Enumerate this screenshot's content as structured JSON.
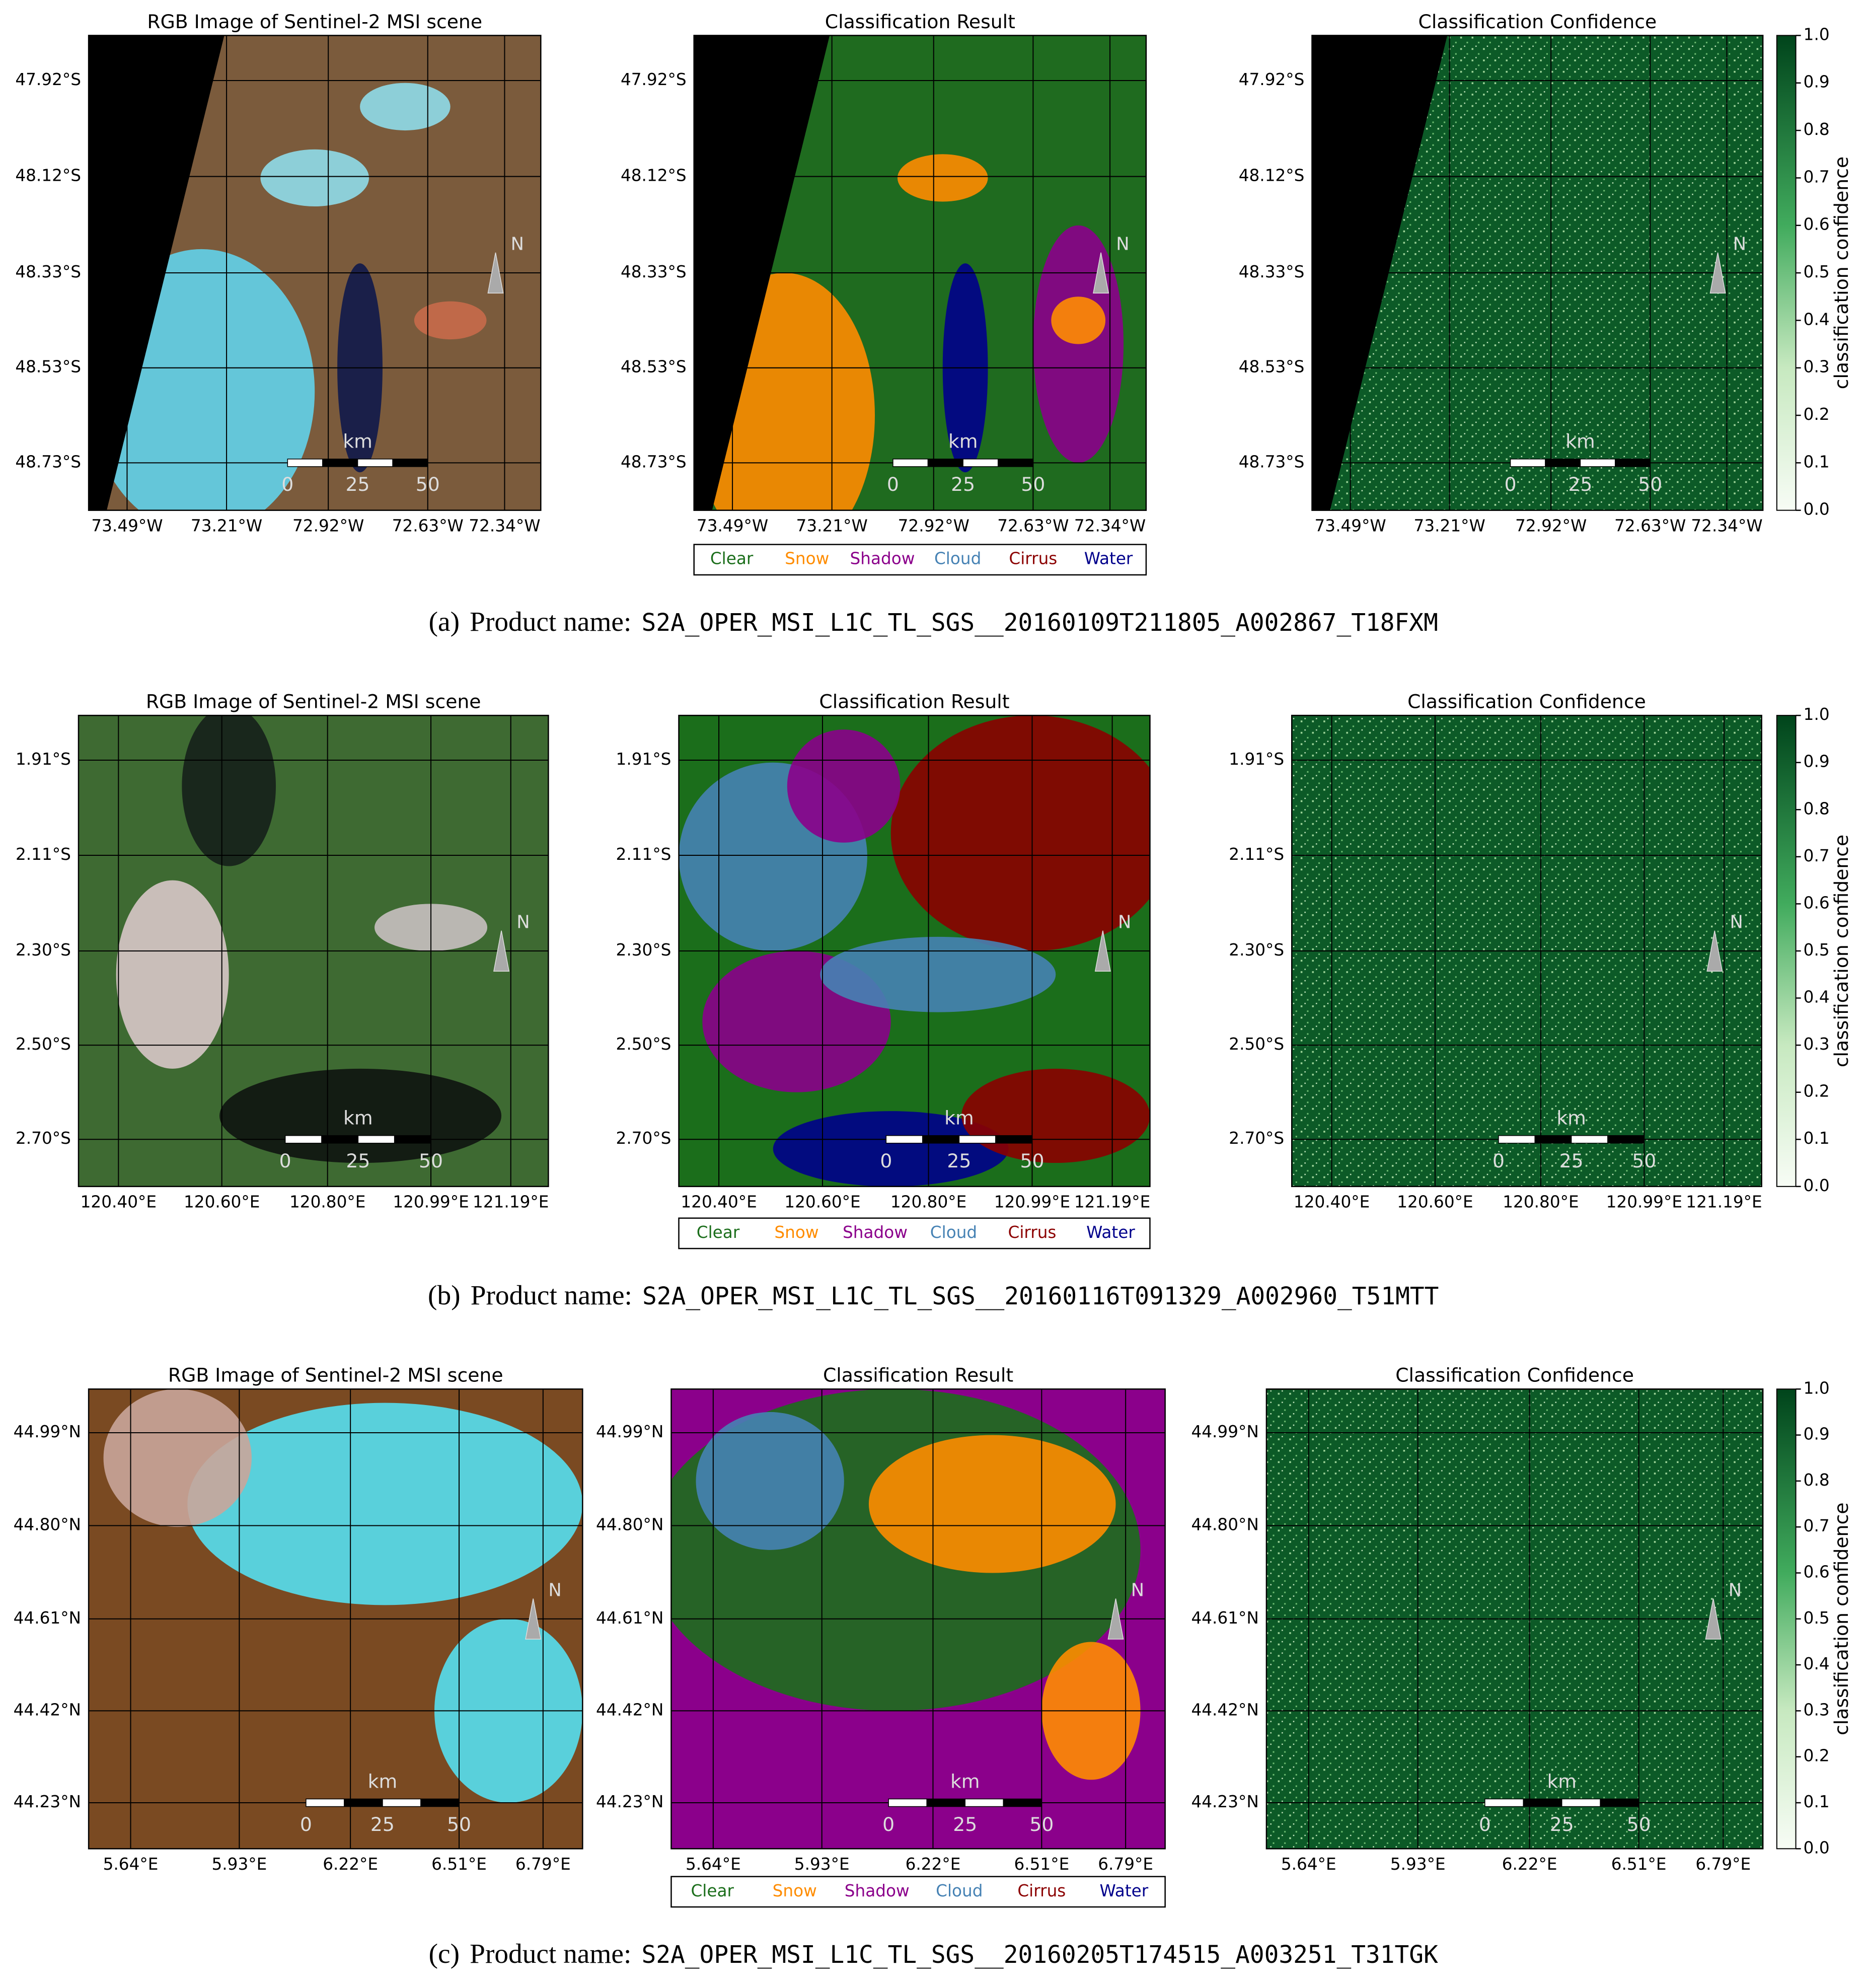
{
  "panels": [
    {
      "rgb_title": "RGB Image of Sentinel-2 MSI scene",
      "class_title": "Classification Result",
      "conf_title": "Classification Confidence",
      "yticks": [
        "47.92°S",
        "48.12°S",
        "48.33°S",
        "48.53°S",
        "48.73°S"
      ],
      "xticks": [
        "73.49°W",
        "73.21°W",
        "72.92°W",
        "72.63°W",
        "72.34°W"
      ],
      "scale_unit": "km",
      "scale_ticks": [
        "0",
        "25",
        "50"
      ],
      "north": "N",
      "legend": [
        "Clear",
        "Snow",
        "Shadow",
        "Cloud",
        "Cirrus",
        "Water"
      ],
      "colorbar_label": "classification confidence",
      "colorbar_ticks": [
        "0.0",
        "0.1",
        "0.2",
        "0.3",
        "0.4",
        "0.5",
        "0.6",
        "0.7",
        "0.8",
        "0.9",
        "1.0"
      ],
      "caption": {
        "label": "(a)",
        "text": "Product name:",
        "product": "S2A_OPER_MSI_L1C_TL_SGS__20160109T211805_A002867_T18FXM"
      }
    },
    {
      "rgb_title": "RGB Image of Sentinel-2 MSI scene",
      "class_title": "Classification Result",
      "conf_title": "Classification Confidence",
      "yticks": [
        "1.91°S",
        "2.11°S",
        "2.30°S",
        "2.50°S",
        "2.70°S"
      ],
      "xticks": [
        "120.40°E",
        "120.60°E",
        "120.80°E",
        "120.99°E",
        "121.19°E"
      ],
      "scale_unit": "km",
      "scale_ticks": [
        "0",
        "25",
        "50"
      ],
      "north": "N",
      "legend": [
        "Clear",
        "Snow",
        "Shadow",
        "Cloud",
        "Cirrus",
        "Water"
      ],
      "colorbar_label": "classification confidence",
      "colorbar_ticks": [
        "0.0",
        "0.1",
        "0.2",
        "0.3",
        "0.4",
        "0.5",
        "0.6",
        "0.7",
        "0.8",
        "0.9",
        "1.0"
      ],
      "caption": {
        "label": "(b)",
        "text": "Product name:",
        "product": "S2A_OPER_MSI_L1C_TL_SGS__20160116T091329_A002960_T51MTT"
      }
    },
    {
      "rgb_title": "RGB Image of Sentinel-2 MSI scene",
      "class_title": "Classification Result",
      "conf_title": "Classification Confidence",
      "yticks": [
        "44.99°N",
        "44.80°N",
        "44.61°N",
        "44.42°N",
        "44.23°N"
      ],
      "xticks": [
        "5.64°E",
        "5.93°E",
        "6.22°E",
        "6.51°E",
        "6.79°E"
      ],
      "scale_unit": "km",
      "scale_ticks": [
        "0",
        "25",
        "50"
      ],
      "north": "N",
      "legend": [
        "Clear",
        "Snow",
        "Shadow",
        "Cloud",
        "Cirrus",
        "Water"
      ],
      "colorbar_label": "classification confidence",
      "colorbar_ticks": [
        "0.0",
        "0.1",
        "0.2",
        "0.3",
        "0.4",
        "0.5",
        "0.6",
        "0.7",
        "0.8",
        "0.9",
        "1.0"
      ],
      "caption": {
        "label": "(c)",
        "text": "Product name:",
        "product": "S2A_OPER_MSI_L1C_TL_SGS__20160205T174515_A003251_T31TGK"
      }
    }
  ]
}
